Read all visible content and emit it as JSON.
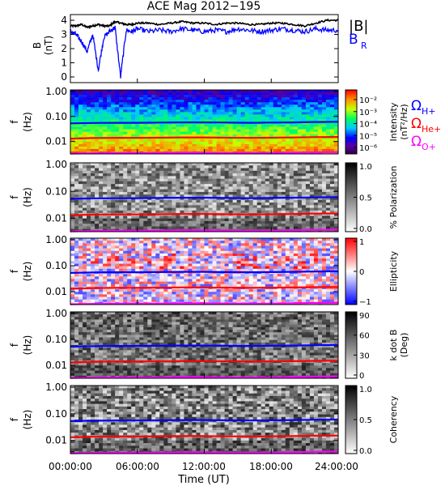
{
  "title": "ACE Mag 2012−195",
  "xaxis": {
    "label": "Time (UT)",
    "ticks": [
      "00:00:00",
      "06:00:00",
      "12:00:00",
      "18:00:00",
      "24:00:00"
    ],
    "range_hours": [
      0,
      24
    ]
  },
  "colors": {
    "btotal": "#000000",
    "br": "#0000ff",
    "h_plus": "#0000ff",
    "he_plus": "#ff0000",
    "o_plus": "#ff00ff"
  },
  "chart_data": [
    {
      "type": "line",
      "panel": "B",
      "ylabel": "B",
      "yunit": "(nT)",
      "ylim": [
        -0.4,
        4.4
      ],
      "yticks": [
        "0",
        "1",
        "2",
        "3",
        "4"
      ],
      "x_hours": [
        0,
        0.5,
        1,
        1.5,
        2,
        2.5,
        3,
        3.5,
        4,
        4.5,
        5,
        5.5,
        6,
        7,
        8,
        9,
        10,
        11,
        12,
        13,
        14,
        15,
        16,
        17,
        18,
        19,
        20,
        21,
        22,
        23,
        24
      ],
      "series": [
        {
          "name": "|B|",
          "color": "#000000",
          "values": [
            3.6,
            3.6,
            3.7,
            3.5,
            3.6,
            3.7,
            3.6,
            3.6,
            3.9,
            3.8,
            3.7,
            3.7,
            3.8,
            3.8,
            3.7,
            3.8,
            3.9,
            3.8,
            3.8,
            3.7,
            3.8,
            3.8,
            3.7,
            3.7,
            3.8,
            3.8,
            3.7,
            3.6,
            3.8,
            4.0,
            4.0
          ]
        },
        {
          "name": "B_R",
          "color": "#0000ff",
          "values": [
            3.2,
            3.0,
            2.5,
            1.8,
            3.0,
            0.5,
            2.8,
            3.2,
            3.5,
            0.0,
            3.3,
            3.2,
            3.4,
            3.2,
            3.3,
            3.2,
            3.4,
            3.3,
            3.2,
            3.3,
            3.2,
            3.4,
            3.3,
            3.2,
            3.3,
            3.4,
            3.3,
            3.2,
            3.4,
            3.3,
            3.3
          ]
        }
      ],
      "legend": [
        "|B|",
        "B",
        "R"
      ]
    },
    {
      "type": "heatmap",
      "panel": "intensity",
      "ylabel": "f",
      "yunit": "(Hz)",
      "yscale": "log",
      "yticks": [
        "1.00",
        "0.10",
        "0.01"
      ],
      "colorbar": {
        "label": "Intensity",
        "unit": "(nT²/Hz)",
        "ticks": [
          "10⁻²",
          "10⁻³",
          "10⁻⁴",
          "10⁻⁵",
          "10⁻⁶"
        ],
        "colormap": "rainbow"
      },
      "legend": [
        {
          "symbol": "Ω",
          "sub": "H+",
          "color": "#0000ff"
        },
        {
          "symbol": "Ω",
          "sub": "He+",
          "color": "#ff0000"
        },
        {
          "symbol": "Ω",
          "sub": "O+",
          "color": "#ff00ff"
        }
      ]
    },
    {
      "type": "heatmap",
      "panel": "polarization",
      "ylabel": "f",
      "yunit": "(Hz)",
      "yscale": "log",
      "yticks": [
        "1.00",
        "0.10",
        "0.01"
      ],
      "colorbar": {
        "label": "% Polarization",
        "unit": "",
        "ticks": [
          "1.0",
          "0.5",
          "0.0"
        ],
        "colormap": "gray"
      }
    },
    {
      "type": "heatmap",
      "panel": "ellipticity",
      "ylabel": "f",
      "yunit": "(Hz)",
      "yscale": "log",
      "yticks": [
        "1.00",
        "0.10",
        "0.01"
      ],
      "colorbar": {
        "label": "Ellipticity",
        "unit": "",
        "ticks": [
          "1",
          "0",
          "−1"
        ],
        "colormap": "bwr"
      }
    },
    {
      "type": "heatmap",
      "panel": "kdotb",
      "ylabel": "f",
      "yunit": "(Hz)",
      "yscale": "log",
      "yticks": [
        "1.00",
        "0.10",
        "0.01"
      ],
      "colorbar": {
        "label": "k dot B",
        "unit": "(Deg)",
        "ticks": [
          "90",
          "60",
          "30",
          "0"
        ],
        "colormap": "gray"
      }
    },
    {
      "type": "heatmap",
      "panel": "coherency",
      "ylabel": "f",
      "yunit": "(Hz)",
      "yscale": "log",
      "yticks": [
        "1.00",
        "0.10",
        "0.01"
      ],
      "colorbar": {
        "label": "Coherency",
        "unit": "",
        "ticks": [
          "1.0",
          "0.5",
          "0.0"
        ],
        "colormap": "gray"
      }
    }
  ],
  "gyrofrequency_hz": {
    "x_hours": [
      0,
      2,
      4,
      6,
      8,
      10,
      12,
      14,
      16,
      18,
      20,
      22,
      24
    ],
    "h_plus": [
      0.053,
      0.055,
      0.056,
      0.056,
      0.057,
      0.058,
      0.058,
      0.057,
      0.056,
      0.057,
      0.058,
      0.06,
      0.061
    ],
    "he_plus": [
      0.013,
      0.0138,
      0.014,
      0.014,
      0.0142,
      0.0145,
      0.0145,
      0.0142,
      0.014,
      0.0142,
      0.0145,
      0.015,
      0.0152
    ],
    "o_plus": [
      0.0033,
      0.0034,
      0.0035,
      0.0035,
      0.0035,
      0.0036,
      0.0036,
      0.0035,
      0.0035,
      0.0035,
      0.0036,
      0.0037,
      0.0038
    ]
  }
}
